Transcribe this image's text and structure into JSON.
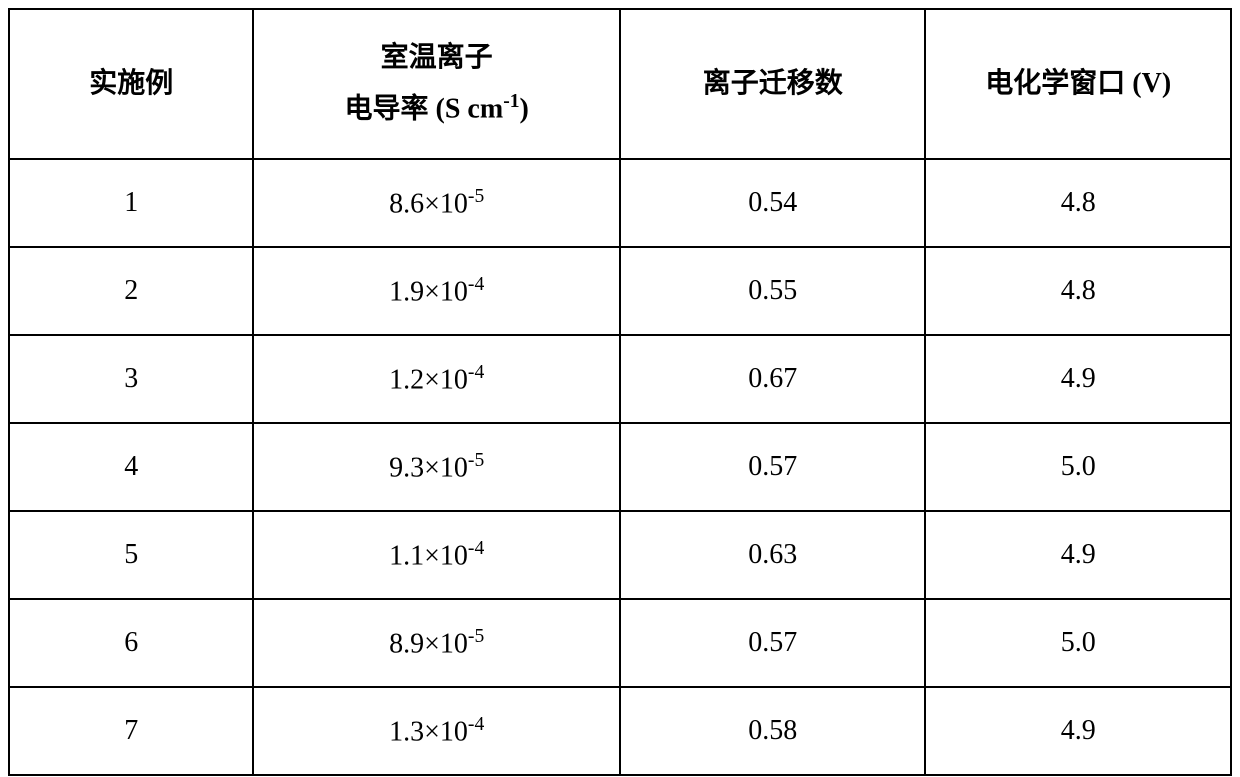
{
  "table": {
    "columns": [
      {
        "header_html": "实施例",
        "width_percent": 20,
        "align": "center"
      },
      {
        "header_html": "室温离子<br>电导率 (S cm<sup>-1</sup>)",
        "width_percent": 30,
        "align": "center"
      },
      {
        "header_html": "离子迁移数",
        "width_percent": 25,
        "align": "center"
      },
      {
        "header_html": "电化学窗口 (V)",
        "width_percent": 25,
        "align": "center"
      }
    ],
    "rows": [
      [
        "1",
        "8.6×10<sup>-5</sup>",
        "0.54",
        "4.8"
      ],
      [
        "2",
        "1.9×10<sup>-4</sup>",
        "0.55",
        "4.8"
      ],
      [
        "3",
        "1.2×10<sup>-4</sup>",
        "0.67",
        "4.9"
      ],
      [
        "4",
        "9.3×10<sup>-5</sup>",
        "0.57",
        "5.0"
      ],
      [
        "5",
        "1.1×10<sup>-4</sup>",
        "0.63",
        "4.9"
      ],
      [
        "6",
        "8.9×10<sup>-5</sup>",
        "0.57",
        "5.0"
      ],
      [
        "7",
        "1.3×10<sup>-4</sup>",
        "0.58",
        "4.9"
      ]
    ],
    "border_color": "#000000",
    "background_color": "#ffffff",
    "text_color": "#000000",
    "header_fontsize": 28,
    "cell_fontsize": 28,
    "header_font_weight": "bold",
    "cell_font_weight": "normal",
    "font_family": "SimSun",
    "header_row_height": 150,
    "data_row_height": 88,
    "border_width": 2
  }
}
